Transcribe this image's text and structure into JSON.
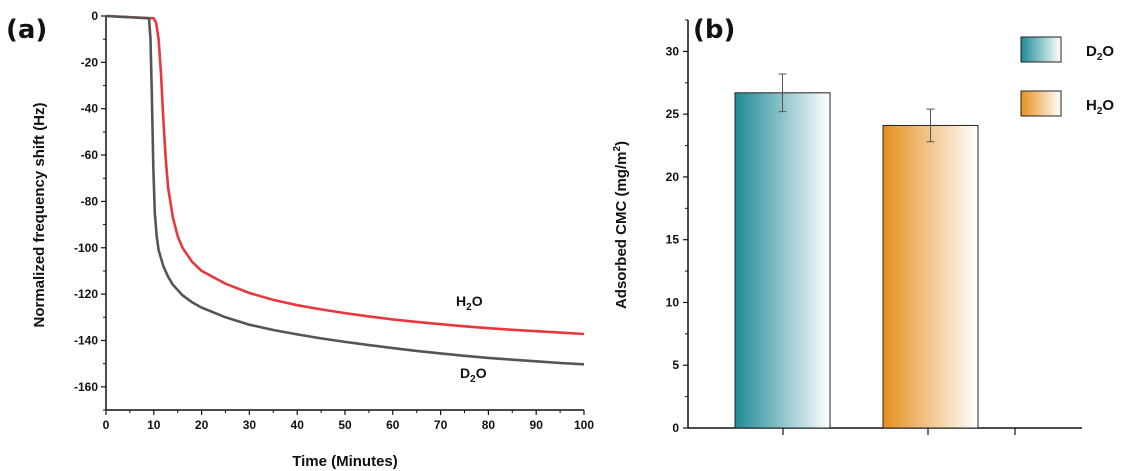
{
  "chart_data": [
    {
      "panel": "(a)",
      "type": "line",
      "xlabel": "Time (Minutes)",
      "ylabel": "Normalized frequency shift (Hz)",
      "xlim": [
        0,
        100
      ],
      "ylim": [
        -170,
        0
      ],
      "x_ticks": [
        0,
        10,
        20,
        30,
        40,
        50,
        60,
        70,
        80,
        90,
        100
      ],
      "y_ticks": [
        0,
        -20,
        -40,
        -60,
        -80,
        -100,
        -120,
        -140,
        -160
      ],
      "grid": false,
      "series": [
        {
          "name": "H2O",
          "color": "#e8383d",
          "x": [
            0,
            10,
            10.5,
            11,
            11.5,
            12,
            12.5,
            13,
            14,
            15,
            16,
            18,
            20,
            25,
            30,
            35,
            40,
            45,
            50,
            55,
            60,
            65,
            70,
            75,
            80,
            85,
            90,
            95,
            100
          ],
          "y": [
            0,
            -1,
            -3,
            -10,
            -25,
            -45,
            -62,
            -74,
            -87,
            -95,
            -100,
            -106,
            -110,
            -115.5,
            -119.5,
            -122.5,
            -124.8,
            -126.6,
            -128.2,
            -129.6,
            -130.9,
            -132.0,
            -133.0,
            -133.9,
            -134.7,
            -135.4,
            -136.0,
            -136.6,
            -137.2
          ]
        },
        {
          "name": "D2O",
          "color": "#555555",
          "x": [
            0,
            9,
            9.3,
            9.6,
            9.9,
            10.2,
            10.6,
            11,
            12,
            13,
            14,
            16,
            18,
            20,
            25,
            30,
            35,
            40,
            45,
            50,
            55,
            60,
            65,
            70,
            75,
            80,
            85,
            90,
            95,
            100
          ],
          "y": [
            0,
            -1,
            -10,
            -35,
            -65,
            -85,
            -95,
            -101,
            -108,
            -112.5,
            -116,
            -120.5,
            -123.5,
            -125.8,
            -130.0,
            -133.2,
            -135.5,
            -137.4,
            -139.1,
            -140.6,
            -142.0,
            -143.3,
            -144.5,
            -145.6,
            -146.6,
            -147.5,
            -148.3,
            -149.0,
            -149.7,
            -150.3
          ]
        }
      ],
      "annotations": [
        {
          "text": "H2O",
          "base": "H",
          "sub": "2",
          "tail": "O",
          "series": "H2O"
        },
        {
          "text": "D2O",
          "base": "D",
          "sub": "2",
          "tail": "O",
          "series": "D2O"
        }
      ]
    },
    {
      "panel": "(b)",
      "type": "bar",
      "ylabel": "Adsorbed CMC (mg/m2)",
      "ylabel_parts": {
        "main": "Adsorbed CMC (mg/m",
        "sup": "2",
        "tail": ")"
      },
      "ylim": [
        0,
        32.5
      ],
      "y_ticks": [
        0,
        5,
        10,
        15,
        20,
        25,
        30
      ],
      "grid": false,
      "legend_position": "top-right",
      "series": [
        {
          "name": "D2O",
          "legend": {
            "base": "D",
            "sub": "2",
            "tail": "O"
          },
          "value": 26.7,
          "error": 1.5,
          "color_dark": "#1e8a96",
          "color_light": "#ffffff"
        },
        {
          "name": "H2O",
          "legend": {
            "base": "H",
            "sub": "2",
            "tail": "O"
          },
          "value": 24.1,
          "error": 1.3,
          "color_dark": "#e5901e",
          "color_light": "#ffffff"
        }
      ]
    }
  ]
}
